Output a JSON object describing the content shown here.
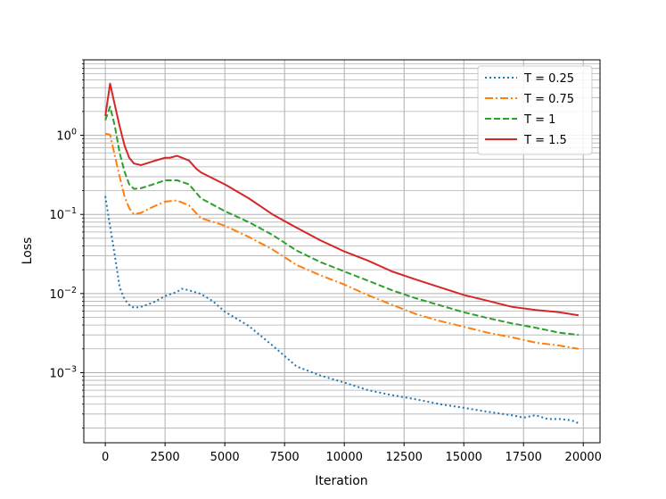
{
  "chart_data": {
    "type": "line",
    "title": "",
    "xlabel": "Iteration",
    "ylabel": "Loss",
    "yscale": "log",
    "xlim": [
      -900,
      20700
    ],
    "ylim": [
      0.00013,
      9
    ],
    "grid": "both (major and minor)",
    "legend_position": "top-right",
    "x_ticks": [
      0,
      2500,
      5000,
      7500,
      10000,
      12500,
      15000,
      17500,
      20000
    ],
    "x_tick_labels": [
      "0",
      "2500",
      "5000",
      "7500",
      "10000",
      "12500",
      "15000",
      "17500",
      "20000"
    ],
    "y_ticks": [
      0.001,
      0.01,
      0.1,
      1
    ],
    "y_tick_labels": [
      {
        "base": "10",
        "exp": "−3"
      },
      {
        "base": "10",
        "exp": "−2"
      },
      {
        "base": "10",
        "exp": "−1"
      },
      {
        "base": "10",
        "exp": "0"
      }
    ],
    "series": [
      {
        "name": "T = 0.25",
        "color": "#1f77b4",
        "dash": "dotted",
        "points": [
          [
            0,
            0.17
          ],
          [
            200,
            0.07
          ],
          [
            400,
            0.03
          ],
          [
            600,
            0.012
          ],
          [
            800,
            0.0085
          ],
          [
            1000,
            0.0072
          ],
          [
            1200,
            0.0066
          ],
          [
            1500,
            0.0068
          ],
          [
            2000,
            0.0077
          ],
          [
            2500,
            0.0093
          ],
          [
            3000,
            0.0105
          ],
          [
            3200,
            0.0115
          ],
          [
            3500,
            0.011
          ],
          [
            4000,
            0.0099
          ],
          [
            4500,
            0.008
          ],
          [
            5000,
            0.0059
          ],
          [
            6000,
            0.0039
          ],
          [
            7000,
            0.0022
          ],
          [
            8000,
            0.0012
          ],
          [
            9000,
            0.00092
          ],
          [
            10000,
            0.00075
          ],
          [
            11000,
            0.0006
          ],
          [
            12000,
            0.00052
          ],
          [
            13000,
            0.00046
          ],
          [
            14000,
            0.0004
          ],
          [
            15000,
            0.00036
          ],
          [
            16000,
            0.00032
          ],
          [
            17000,
            0.00029
          ],
          [
            17500,
            0.00027
          ],
          [
            18000,
            0.00029
          ],
          [
            18500,
            0.00026
          ],
          [
            19000,
            0.00026
          ],
          [
            19500,
            0.00025
          ],
          [
            19800,
            0.00023
          ]
        ]
      },
      {
        "name": "T = 0.75",
        "color": "#ff7f0e",
        "dash": "dashdot",
        "points": [
          [
            0,
            1.05
          ],
          [
            200,
            1.02
          ],
          [
            400,
            0.55
          ],
          [
            600,
            0.3
          ],
          [
            800,
            0.17
          ],
          [
            1000,
            0.12
          ],
          [
            1200,
            0.1
          ],
          [
            1500,
            0.105
          ],
          [
            2000,
            0.125
          ],
          [
            2500,
            0.145
          ],
          [
            3000,
            0.15
          ],
          [
            3500,
            0.13
          ],
          [
            4000,
            0.09
          ],
          [
            5000,
            0.072
          ],
          [
            6000,
            0.052
          ],
          [
            7000,
            0.036
          ],
          [
            8000,
            0.023
          ],
          [
            9000,
            0.017
          ],
          [
            10000,
            0.013
          ],
          [
            11000,
            0.0095
          ],
          [
            12000,
            0.0072
          ],
          [
            13000,
            0.0055
          ],
          [
            14000,
            0.0045
          ],
          [
            15000,
            0.0038
          ],
          [
            16000,
            0.0032
          ],
          [
            17000,
            0.0028
          ],
          [
            18000,
            0.0024
          ],
          [
            19000,
            0.0022
          ],
          [
            19800,
            0.002
          ]
        ]
      },
      {
        "name": "T = 1",
        "color": "#2ca02c",
        "dash": "dashed",
        "points": [
          [
            0,
            1.55
          ],
          [
            200,
            2.3
          ],
          [
            400,
            1.3
          ],
          [
            600,
            0.6
          ],
          [
            800,
            0.35
          ],
          [
            1000,
            0.24
          ],
          [
            1200,
            0.21
          ],
          [
            1500,
            0.215
          ],
          [
            2000,
            0.24
          ],
          [
            2500,
            0.27
          ],
          [
            3000,
            0.27
          ],
          [
            3500,
            0.24
          ],
          [
            4000,
            0.16
          ],
          [
            5000,
            0.11
          ],
          [
            6000,
            0.08
          ],
          [
            7000,
            0.055
          ],
          [
            8000,
            0.035
          ],
          [
            9000,
            0.025
          ],
          [
            10000,
            0.019
          ],
          [
            11000,
            0.0145
          ],
          [
            12000,
            0.011
          ],
          [
            13000,
            0.0087
          ],
          [
            14000,
            0.0071
          ],
          [
            15000,
            0.0058
          ],
          [
            16000,
            0.0049
          ],
          [
            17000,
            0.0042
          ],
          [
            18000,
            0.0037
          ],
          [
            19000,
            0.0032
          ],
          [
            19800,
            0.003
          ]
        ]
      },
      {
        "name": "T = 1.5",
        "color": "#d62728",
        "dash": "solid",
        "points": [
          [
            0,
            1.75
          ],
          [
            200,
            4.5
          ],
          [
            400,
            2.4
          ],
          [
            600,
            1.3
          ],
          [
            800,
            0.75
          ],
          [
            1000,
            0.52
          ],
          [
            1200,
            0.44
          ],
          [
            1500,
            0.42
          ],
          [
            2000,
            0.47
          ],
          [
            2500,
            0.52
          ],
          [
            2700,
            0.52
          ],
          [
            3000,
            0.55
          ],
          [
            3500,
            0.48
          ],
          [
            3800,
            0.38
          ],
          [
            4000,
            0.34
          ],
          [
            5000,
            0.24
          ],
          [
            6000,
            0.16
          ],
          [
            7000,
            0.1
          ],
          [
            8000,
            0.068
          ],
          [
            9000,
            0.047
          ],
          [
            10000,
            0.034
          ],
          [
            11000,
            0.026
          ],
          [
            12000,
            0.019
          ],
          [
            13000,
            0.015
          ],
          [
            14000,
            0.012
          ],
          [
            15000,
            0.0096
          ],
          [
            16000,
            0.0081
          ],
          [
            17000,
            0.0068
          ],
          [
            18000,
            0.0062
          ],
          [
            19000,
            0.0058
          ],
          [
            19800,
            0.0053
          ]
        ]
      }
    ]
  }
}
